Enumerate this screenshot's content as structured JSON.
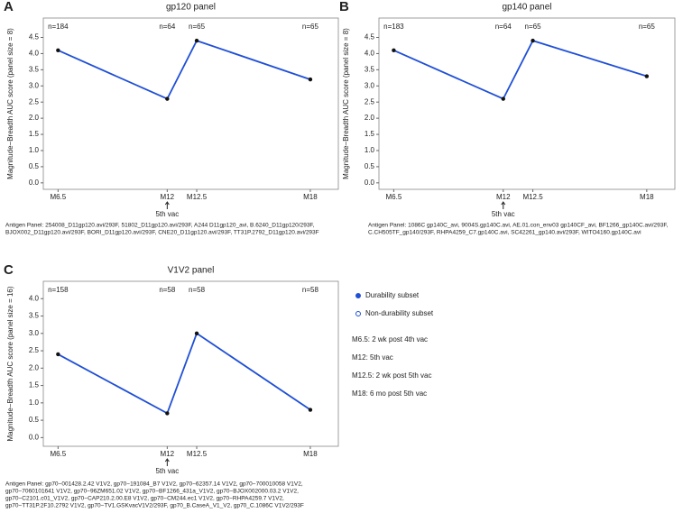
{
  "chart_data": [
    {
      "type": "line",
      "panel_label": "A",
      "title": "gp120 panel",
      "ylabel": "Magnitude−Breadth AUC score (panel size = 8)",
      "categories": [
        "M6.5",
        "M12",
        "M12.5",
        "M18"
      ],
      "n_labels": [
        "n=184",
        "n=64",
        "n=65",
        "n=65"
      ],
      "values": [
        4.1,
        2.6,
        4.4,
        3.2
      ],
      "color": "#1f4fd6",
      "ylim": [
        -0.2,
        5.1
      ],
      "yticks": [
        {
          "value": 0,
          "label": "0.0"
        },
        0.5,
        {
          "value": 1,
          "label": "1.0"
        },
        1.5,
        {
          "value": 2,
          "label": "2.0"
        },
        2.5,
        {
          "value": 3,
          "label": "3.0"
        },
        3.5,
        {
          "value": 4,
          "label": "4.0"
        },
        4.5
      ],
      "arrow_label": "5th vac",
      "caption": [
        "Antigen Panel: 254008_D11gp120.avi/293F, 51802_D11gp120.avi/293F, A244 D11gp120_avi, B.6240_D11gp120/293F,",
        "BJOX002_D11gp120.avi/293F, BORI_D11gp120.avi/293F, CNE20_D11gp120.avi/293F, TT31P.2792_D11gp120.avi/293F"
      ]
    },
    {
      "type": "line",
      "panel_label": "B",
      "title": "gp140 panel",
      "ylabel": "Magnitude−Breadth AUC score (panel size = 8)",
      "categories": [
        "M6.5",
        "M12",
        "M12.5",
        "M18"
      ],
      "n_labels": [
        "n=183",
        "n=64",
        "n=65",
        "n=65"
      ],
      "values": [
        4.1,
        2.6,
        4.4,
        3.3
      ],
      "color": "#1f4fd6",
      "ylim": [
        -0.2,
        5.1
      ],
      "yticks": [
        {
          "value": 0,
          "label": "0.0"
        },
        0.5,
        {
          "value": 1,
          "label": "1.0"
        },
        1.5,
        {
          "value": 2,
          "label": "2.0"
        },
        2.5,
        {
          "value": 3,
          "label": "3.0"
        },
        3.5,
        {
          "value": 4,
          "label": "4.0"
        },
        4.5
      ],
      "arrow_label": "5th vac",
      "caption": [
        "Antigen Panel: 1086C gp140C_avi, 9004S.gp140C.avi, AE.01.con_env03 gp140CF_avi, BF1266_gp140C.avi/293F,",
        "C.CH505TF_gp140/293F, RHPA4259_C7.gp140C.avi, SC42261_gp140.avi/293F, WITO4160.gp140C.avi"
      ]
    },
    {
      "type": "line",
      "panel_label": "C",
      "title": "V1V2 panel",
      "ylabel": "Magnitude−Breadth AUC score (panel size = 16)",
      "categories": [
        "M6.5",
        "M12",
        "M12.5",
        "M18"
      ],
      "n_labels": [
        "n=158",
        "n=58",
        "n=58",
        "n=58"
      ],
      "values": [
        2.4,
        0.7,
        3.0,
        0.8
      ],
      "color": "#1f4fd6",
      "ylim": [
        -0.25,
        4.5
      ],
      "yticks": [
        {
          "value": 0,
          "label": "0.0"
        },
        0.5,
        {
          "value": 1,
          "label": "1.0"
        },
        1.5,
        {
          "value": 2,
          "label": "2.0"
        },
        2.5,
        {
          "value": 3,
          "label": "3.0"
        },
        3.5,
        {
          "value": 4,
          "label": "4.0"
        }
      ],
      "arrow_label": "5th vac",
      "caption": [
        "Antigen Panel: gp70−001428.2.42 V1V2, gp70−191084_B7 V1V2, gp70−62357.14 V1V2, gp70−700010058 V1V2,",
        "gp70−7060101641 V1V2, gp70−96ZM651.02 V1V2, gp70−BF1266_431a_V1V2, gp70−BJOX002000.03.2 V1V2,",
        "gp70−C2101.c01_V1V2, gp70−CAP210.2.00.E8 V1V2, gp70−CM244.ec1 V1V2, gp70−RHPA4259.7 V1V2,",
        "gp70−TT31P.2F10.2792 V1V2, gp70−TV1.GSKvacV1V2/293F, gp70_B.CaseA_V1_V2, gp70_C.1086C V1V2/293F"
      ]
    }
  ],
  "legend": {
    "items": [
      "Durability subset",
      "Non-durability subset"
    ],
    "notes": [
      "M6.5: 2 wk post 4th vac",
      "M12: 5th vac",
      "M12.5: 2 wk post 5th vac",
      "M18: 6 mo post 5th vac"
    ]
  }
}
